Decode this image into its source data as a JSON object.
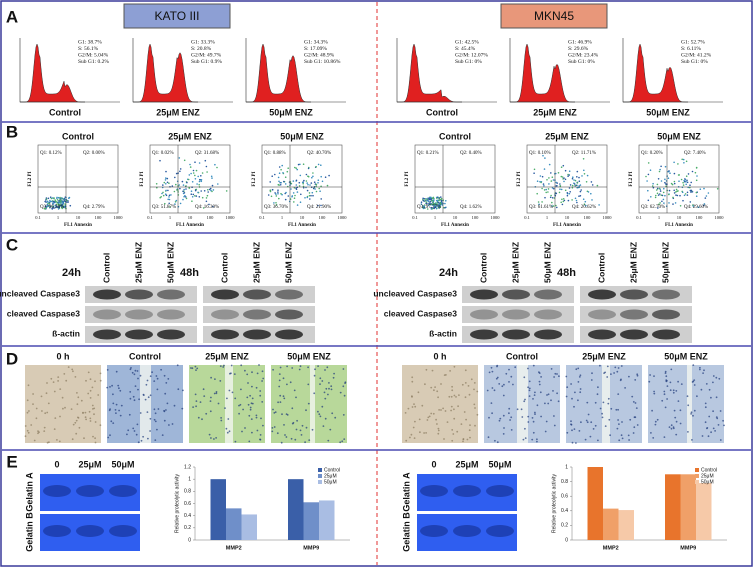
{
  "panel_labels": [
    "A",
    "B",
    "C",
    "D",
    "E"
  ],
  "conditions": [
    "Control",
    "25μM ENZ",
    "50μM ENZ"
  ],
  "flow_axes": {
    "x": "FL1 Annexin",
    "y": "FL2 PI",
    "ticks": [
      "0.1",
      "1",
      "10",
      "100",
      "1000"
    ]
  },
  "blot": {
    "times": [
      "24h",
      "48h"
    ],
    "proteins": [
      "uncleaved Caspase3",
      "cleaved Caspase3",
      "ß-actin"
    ]
  },
  "wound_start": "0 h",
  "gel": {
    "rows": [
      "Gelatin A",
      "Gelatin B"
    ],
    "lanes": [
      "0",
      "25μM",
      "50μM"
    ]
  },
  "cell_lines": [
    {
      "name": "KATO III",
      "cycle": [
        [
          "G1: 38.7%",
          "S: 56.1%",
          "G2/M: 5.04%",
          "Sub G1: 0.2%"
        ],
        [
          "G1: 33.3%",
          "S: 20.8%",
          "G2/M: 49.7%",
          "Sub G1: 0.9%"
        ],
        [
          "G1: 34.3%",
          "S: 17.09%",
          "G2/M: 48.9%",
          "Sub G1: 10.86%"
        ]
      ],
      "apoptosis": [
        [
          "Q1: 0.12%",
          "Q2: 0.00%",
          "Q3: 96.38%",
          "Q4: 2.79%"
        ],
        [
          "Q1: 0.02%",
          "Q2: 31.68%",
          "Q3: 51.87%",
          "Q4: 16.30%"
        ],
        [
          "Q1: 0.88%",
          "Q2: 40.70%",
          "Q3: 36.70%",
          "Q4: 21.90%"
        ]
      ]
    },
    {
      "name": "MKN45",
      "cycle": [
        [
          "G1: 42.5%",
          "S: 45.4%",
          "G2/M: 12.07%",
          "Sub G1: 0%"
        ],
        [
          "G1: 46.9%",
          "S: 29.6%",
          "G2/M: 23.4%",
          "Sub G1: 0%"
        ],
        [
          "G1: 52.7%",
          "S: 6.11%",
          "G2/M: 41.2%",
          "Sub G1: 0%"
        ]
      ],
      "apoptosis": [
        [
          "Q1: 0.21%",
          "Q2: 0.40%",
          "Q3: 97.77%",
          "Q4: 1.62%"
        ],
        [
          "Q1: 0.10%",
          "Q2: 11.71%",
          "Q3: 61.61%",
          "Q4: 26.62%"
        ],
        [
          "Q1: 0.20%",
          "Q2: 7.40%",
          "Q3: 62.70%",
          "Q4: 29.60%"
        ]
      ]
    }
  ],
  "chart_data": [
    {
      "type": "bar",
      "y_label": "Relative proteolytic activity",
      "categories": [
        "MMP2",
        "MMP9"
      ],
      "series": [
        {
          "name": "Control",
          "color": "#3a5fa8",
          "values": [
            1,
            1
          ]
        },
        {
          "name": "25μM",
          "color": "#6f8fc9",
          "values": [
            0.52,
            0.62
          ]
        },
        {
          "name": "50μM",
          "color": "#a9bde3",
          "values": [
            0.42,
            0.65
          ]
        }
      ],
      "ylim": [
        0,
        1.2
      ],
      "yticks": [
        0,
        0.2,
        0.4,
        0.6,
        0.8,
        1,
        1.2
      ],
      "legend": "upper-right"
    },
    {
      "type": "bar",
      "y_label": "Relative proteolytic activity",
      "categories": [
        "MMP2",
        "MMP9"
      ],
      "series": [
        {
          "name": "Control",
          "color": "#e8742c",
          "values": [
            1,
            0.9
          ]
        },
        {
          "name": "25μM",
          "color": "#f0a068",
          "values": [
            0.43,
            0.9
          ]
        },
        {
          "name": "50μM",
          "color": "#f6c9a8",
          "values": [
            0.41,
            0.78
          ]
        }
      ],
      "ylim": [
        0,
        1
      ],
      "yticks": [
        0,
        0.2,
        0.4,
        0.6,
        0.8,
        1
      ],
      "legend": "upper-right"
    }
  ]
}
